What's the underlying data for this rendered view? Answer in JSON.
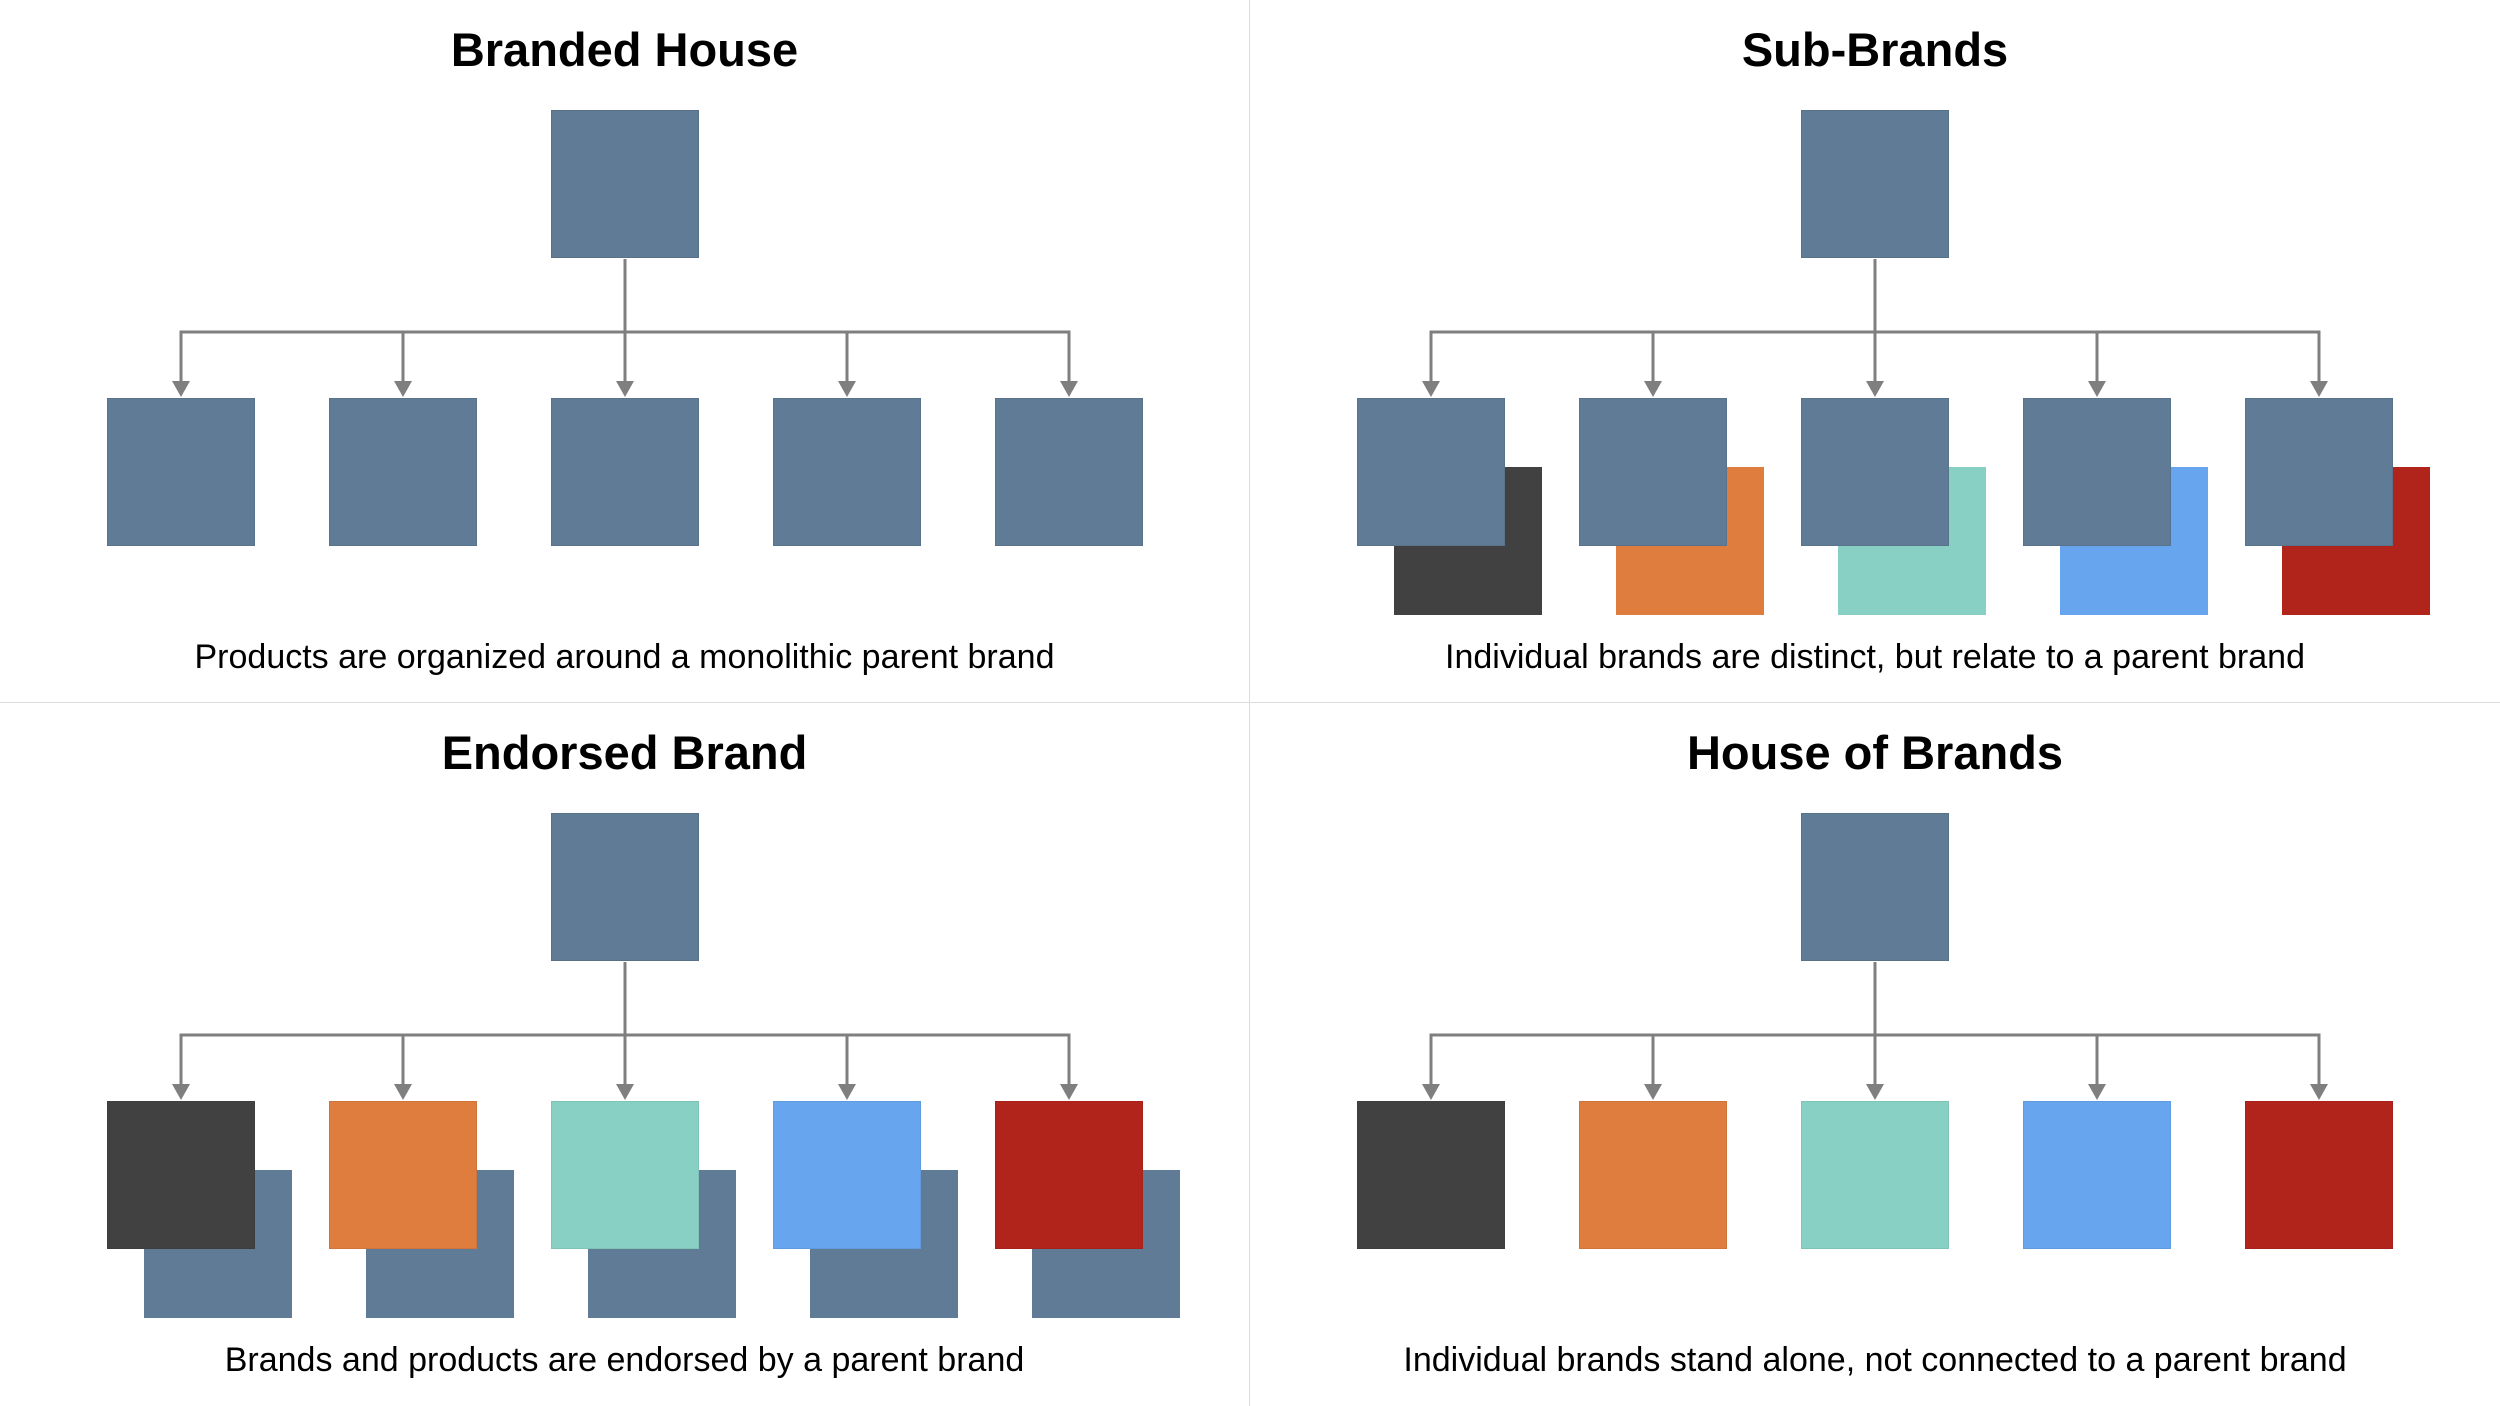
{
  "colors": {
    "connector": "#7f7f7f",
    "divider": "#dcdcdc",
    "brands": {
      "slate": "#5f7b95",
      "charcoal": "#414141",
      "orange": "#de7d3e",
      "teal": "#87d0c3",
      "blue": "#67a5ee",
      "red": "#b0241b"
    }
  },
  "quadrants": [
    {
      "id": "branded-house",
      "title": "Branded House",
      "caption": "Products are organized around a monolithic parent brand",
      "parent_color": "slate",
      "children": [
        {
          "front": "slate"
        },
        {
          "front": "slate"
        },
        {
          "front": "slate"
        },
        {
          "front": "slate"
        },
        {
          "front": "slate"
        }
      ]
    },
    {
      "id": "sub-brands",
      "title": "Sub-Brands",
      "caption": "Individual brands are distinct, but relate to a parent brand",
      "parent_color": "slate",
      "children": [
        {
          "front": "slate",
          "back": "charcoal"
        },
        {
          "front": "slate",
          "back": "orange"
        },
        {
          "front": "slate",
          "back": "teal"
        },
        {
          "front": "slate",
          "back": "blue"
        },
        {
          "front": "slate",
          "back": "red"
        }
      ]
    },
    {
      "id": "endorsed-brand",
      "title": "Endorsed Brand",
      "caption": "Brands and products are endorsed by a parent brand",
      "parent_color": "slate",
      "children": [
        {
          "front": "charcoal",
          "back": "slate"
        },
        {
          "front": "orange",
          "back": "slate"
        },
        {
          "front": "teal",
          "back": "slate"
        },
        {
          "front": "blue",
          "back": "slate"
        },
        {
          "front": "red",
          "back": "slate"
        }
      ]
    },
    {
      "id": "house-of-brands",
      "title": "House of Brands",
      "caption": "Individual brands stand alone, not connected to a parent brand",
      "parent_color": "slate",
      "children": [
        {
          "front": "charcoal"
        },
        {
          "front": "orange"
        },
        {
          "front": "teal"
        },
        {
          "front": "blue"
        },
        {
          "front": "red"
        }
      ]
    }
  ]
}
